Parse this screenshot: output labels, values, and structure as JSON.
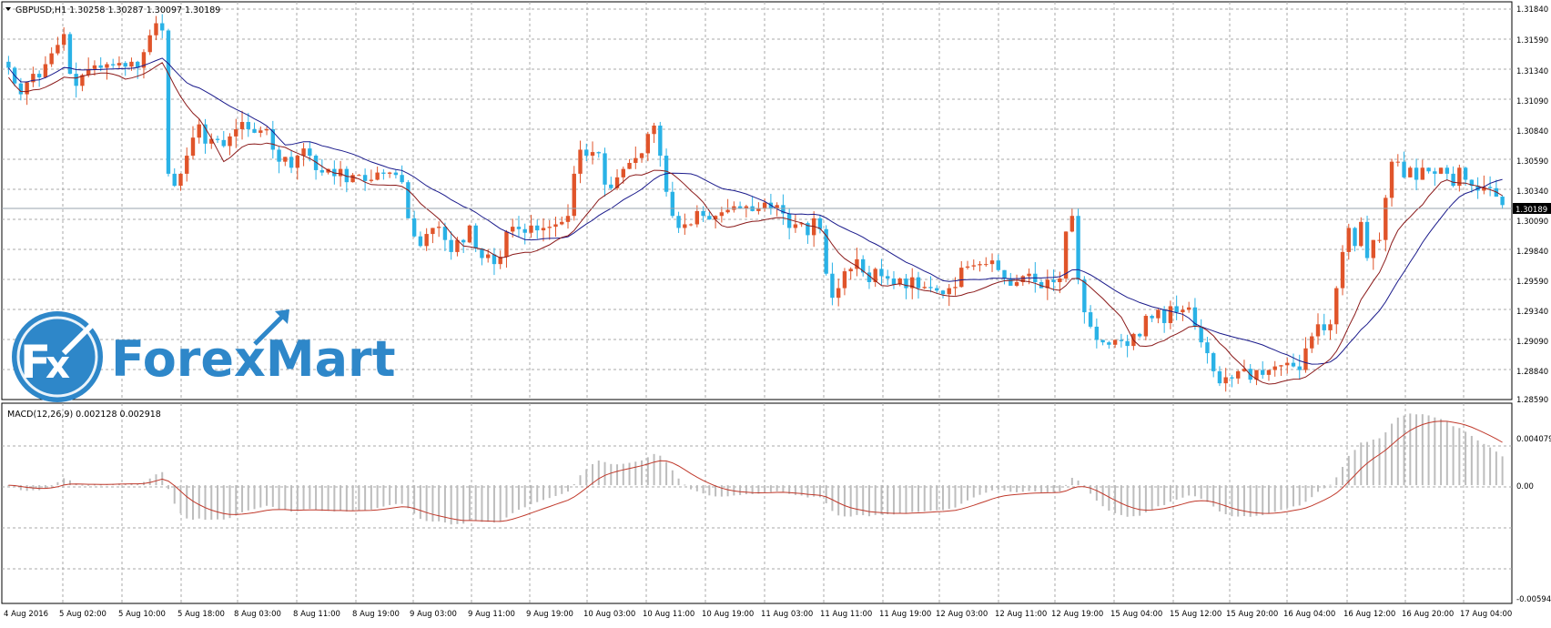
{
  "window": {
    "symbol_header": "GBPUSD,H1  1.30258 1.30287 1.30097 1.30189",
    "menu_arrow_icon": "triangle-down-icon"
  },
  "logo": {
    "text": "ForexMart",
    "icon": "fx-arrow-logo-icon",
    "color": "#2e87c9"
  },
  "colors": {
    "bull_candle": "#e0542a",
    "bear_candle": "#2ab2e6",
    "ma_fast": "#8b1a1a",
    "ma_slow": "#1a1a8b",
    "macd_hist": "#bdbdbd",
    "macd_signal": "#c0392b",
    "grid": "#a8a8a8",
    "current_price_badge": "#000000"
  },
  "price_axis": {
    "ticks": [
      "1.31840",
      "1.31590",
      "1.31340",
      "1.31090",
      "1.30840",
      "1.30590",
      "1.30340",
      "1.30090",
      "1.29840",
      "1.29590",
      "1.29340",
      "1.29090",
      "1.28840",
      "1.28590"
    ],
    "current_price": "1.30189"
  },
  "macd_panel": {
    "label": "MACD(12,26,9) 0.002128 0.002918",
    "ticks": [
      "0.004079",
      "0.00",
      "-0.005945"
    ]
  },
  "time_axis": {
    "labels": [
      "4 Aug 2016",
      "5 Aug 02:00",
      "5 Aug 10:00",
      "5 Aug 18:00",
      "8 Aug 03:00",
      "8 Aug 11:00",
      "8 Aug 19:00",
      "9 Aug 03:00",
      "9 Aug 11:00",
      "9 Aug 19:00",
      "10 Aug 03:00",
      "10 Aug 11:00",
      "10 Aug 19:00",
      "11 Aug 03:00",
      "11 Aug 11:00",
      "11 Aug 19:00",
      "12 Aug 03:00",
      "12 Aug 11:00",
      "12 Aug 19:00",
      "15 Aug 04:00",
      "15 Aug 12:00",
      "15 Aug 20:00",
      "16 Aug 04:00",
      "16 Aug 12:00",
      "16 Aug 20:00",
      "17 Aug 04:00"
    ]
  },
  "chart_data": {
    "type": "candlestick",
    "symbol": "GBPUSD",
    "timeframe": "H1",
    "ylim": [
      1.2859,
      1.3184
    ],
    "closes": [
      1.3133,
      1.312,
      1.3111,
      1.3121,
      1.3128,
      1.3125,
      1.3136,
      1.3145,
      1.3152,
      1.3161,
      1.3128,
      1.3118,
      1.3127,
      1.3132,
      1.3135,
      1.3133,
      1.3136,
      1.3135,
      1.3137,
      1.3134,
      1.3138,
      1.3133,
      1.3146,
      1.316,
      1.317,
      1.3164,
      1.3045,
      1.3035,
      1.3045,
      1.306,
      1.3075,
      1.3086,
      1.307,
      1.3074,
      1.3073,
      1.3068,
      1.3076,
      1.3082,
      1.3088,
      1.3082,
      1.3079,
      1.3081,
      1.3082,
      1.3065,
      1.3055,
      1.3059,
      1.305,
      1.306,
      1.3066,
      1.306,
      1.3048,
      1.3046,
      1.3049,
      1.3043,
      1.3049,
      1.3038,
      1.3044,
      1.3044,
      1.3039,
      1.304,
      1.3046,
      1.3045,
      1.3046,
      1.3044,
      1.3038,
      1.3008,
      1.2993,
      1.2985,
      1.2995,
      1.3,
      1.3001,
      1.299,
      1.298,
      1.299,
      1.2988,
      1.3002,
      1.2983,
      1.2975,
      1.2978,
      1.297,
      1.2976,
      1.2997,
      1.3001,
      1.2999,
      1.2996,
      1.3002,
      1.2998,
      1.3,
      1.3001,
      1.3003,
      1.3005,
      1.301,
      1.3045,
      1.3065,
      1.306,
      1.3063,
      1.3062,
      1.3036,
      1.3033,
      1.3042,
      1.3049,
      1.3054,
      1.3058,
      1.3062,
      1.3078,
      1.3085,
      1.306,
      1.303,
      1.301,
      1.3,
      1.3003,
      1.3003,
      1.3014,
      1.301,
      1.3007,
      1.301,
      1.3013,
      1.3015,
      1.3018,
      1.3016,
      1.3018,
      1.3014,
      1.3016,
      1.3021,
      1.3016,
      1.3019,
      1.3012,
      1.3,
      1.3003,
      1.3004,
      1.2994,
      1.3008,
      1.2999,
      1.2962,
      1.2942,
      1.295,
      1.2964,
      1.2966,
      1.2974,
      1.2963,
      1.2955,
      1.2966,
      1.296,
      1.2958,
      1.2953,
      1.2958,
      1.295,
      1.2959,
      1.295,
      1.2951,
      1.295,
      1.2948,
      1.2945,
      1.295,
      1.2951,
      1.2967,
      1.2968,
      1.2969,
      1.297,
      1.297,
      1.2973,
      1.2965,
      1.2958,
      1.2952,
      1.2955,
      1.296,
      1.2962,
      1.2955,
      1.295,
      1.2957,
      1.2955,
      1.2958,
      1.2997,
      1.301,
      1.2957,
      1.293,
      1.2918,
      1.2907,
      1.2905,
      1.2903,
      1.2907,
      1.2906,
      1.2902,
      1.2912,
      1.291,
      1.2927,
      1.2925,
      1.2932,
      1.2921,
      1.2935,
      1.293,
      1.2932,
      1.2934,
      1.2918,
      1.2905,
      1.2896,
      1.2881,
      1.2871,
      1.2876,
      1.2875,
      1.2881,
      1.2883,
      1.2874,
      1.2882,
      1.2878,
      1.2882,
      1.2885,
      1.2886,
      1.2888,
      1.2885,
      1.2882,
      1.29,
      1.291,
      1.292,
      1.2915,
      1.292,
      1.295,
      1.298,
      1.3,
      1.2985,
      1.3005,
      1.2975,
      1.299,
      1.299,
      1.3025,
      1.3055,
      1.3055,
      1.3042,
      1.305,
      1.304,
      1.305,
      1.3047,
      1.3045,
      1.305,
      1.3045,
      1.3035,
      1.305,
      1.304,
      1.3035,
      1.3031,
      1.3034,
      1.3033,
      1.3026,
      1.3019
    ]
  }
}
